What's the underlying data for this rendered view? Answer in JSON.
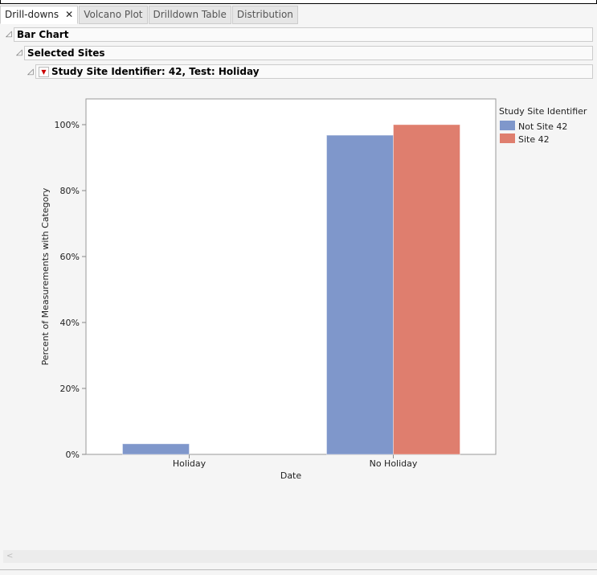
{
  "tabs": [
    {
      "label": "Drill-downs",
      "active": true,
      "close": "✕"
    },
    {
      "label": "Volcano Plot"
    },
    {
      "label": "Drilldown Table"
    },
    {
      "label": "Distribution"
    }
  ],
  "outline": {
    "bar_chart": "Bar Chart",
    "selected_sites": "Selected Sites",
    "report": "Study Site Identifier: 42, Test: Holiday"
  },
  "chart_data": {
    "type": "bar",
    "categories": [
      "Holiday",
      "No Holiday"
    ],
    "series": [
      {
        "name": "Not Site 42",
        "color": "#7f97cb",
        "values": [
          3.2,
          96.8
        ]
      },
      {
        "name": "Site 42",
        "color": "#df7e6e",
        "values": [
          0,
          100
        ]
      }
    ],
    "xlabel": "Date",
    "ylabel": "Percent of Measurements with Category",
    "ylim": [
      0,
      108
    ],
    "yticks": [
      0,
      20,
      40,
      60,
      80,
      100
    ],
    "ytick_labels": [
      "0%",
      "20%",
      "40%",
      "60%",
      "80%",
      "100%"
    ],
    "legend_title": "Study Site Identifier",
    "legend_position": "right"
  }
}
